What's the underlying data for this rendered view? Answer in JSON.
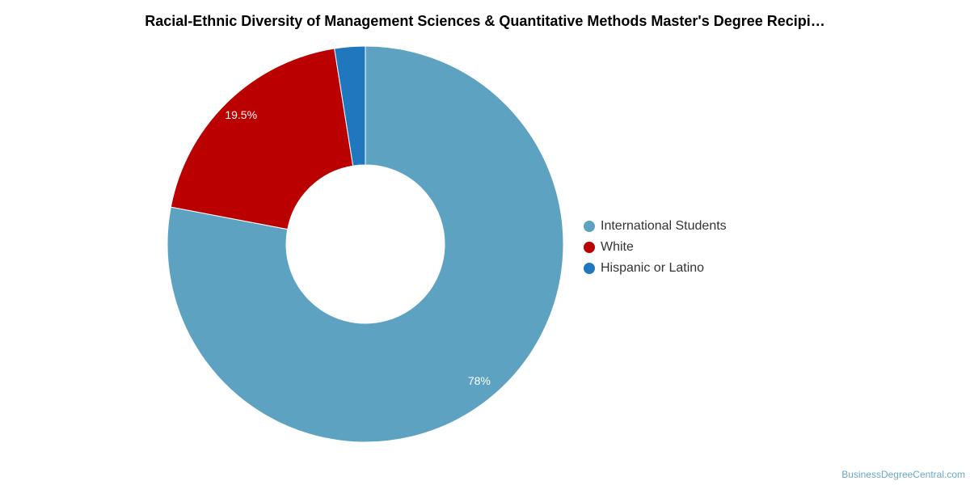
{
  "chart_data": {
    "type": "pie",
    "variant": "donut",
    "title": "Racial-Ethnic Diversity of Management Sciences & Quantitative Methods Master's Degree Recipi…",
    "slices": [
      {
        "label": "International Students",
        "value": 78,
        "display": "78%",
        "color": "#5da3c1"
      },
      {
        "label": "White",
        "value": 19.5,
        "display": "19.5%",
        "color": "#bb0000"
      },
      {
        "label": "Hispanic or Latino",
        "value": 2.5,
        "display": "",
        "color": "#1f77be"
      }
    ],
    "legend_position": "right"
  },
  "footer": {
    "watermark": "BusinessDegreeCentral.com"
  }
}
